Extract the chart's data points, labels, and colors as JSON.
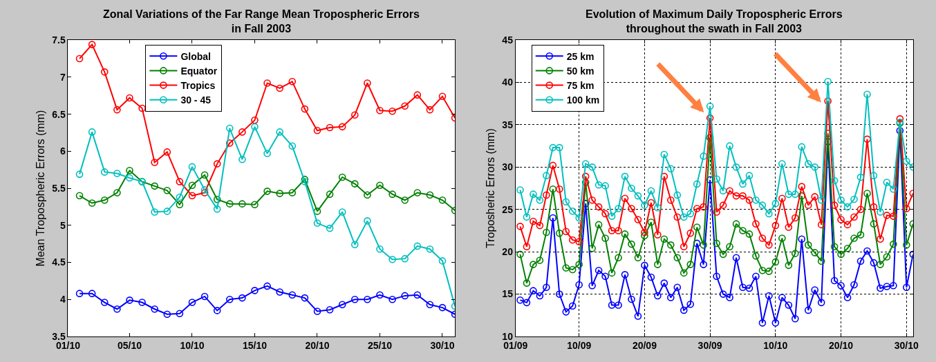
{
  "chart_data": [
    {
      "type": "line",
      "title": "Zonal Variations of the Far Range Mean Tropospheric Errors\nin Fall 2003",
      "ylabel": "Mean Tropospheric Errors (mm)",
      "x": [
        "2003-10-01",
        "2003-10-02",
        "2003-10-03",
        "2003-10-04",
        "2003-10-05",
        "2003-10-06",
        "2003-10-07",
        "2003-10-08",
        "2003-10-09",
        "2003-10-10",
        "2003-10-11",
        "2003-10-12",
        "2003-10-13",
        "2003-10-14",
        "2003-10-15",
        "2003-10-16",
        "2003-10-17",
        "2003-10-18",
        "2003-10-19",
        "2003-10-20",
        "2003-10-21",
        "2003-10-22",
        "2003-10-23",
        "2003-10-24",
        "2003-10-25",
        "2003-10-26",
        "2003-10-27",
        "2003-10-28",
        "2003-10-29",
        "2003-10-30",
        "2003-10-31"
      ],
      "xlim": [
        "2003-09-30T02:00",
        "2003-10-31"
      ],
      "xticks": [
        {
          "value": "2003-09-30T02:00",
          "label": "01/10"
        },
        {
          "value": "2003-10-05",
          "label": "05/10"
        },
        {
          "value": "2003-10-10",
          "label": "10/10"
        },
        {
          "value": "2003-10-15",
          "label": "15/10"
        },
        {
          "value": "2003-10-20",
          "label": "20/10"
        },
        {
          "value": "2003-10-25",
          "label": "25/10"
        },
        {
          "value": "2003-10-30",
          "label": "30/10"
        }
      ],
      "ylim": [
        3.5,
        7.5
      ],
      "yticks": [
        3.5,
        4,
        4.5,
        5,
        5.5,
        6,
        6.5,
        7,
        7.5
      ],
      "marker": "circle",
      "legend": "top",
      "series": [
        {
          "name": "Global",
          "color": "#0000ff",
          "values": [
            4.08,
            4.08,
            3.96,
            3.87,
            3.99,
            3.96,
            3.87,
            3.8,
            3.81,
            3.96,
            4.04,
            3.85,
            4.0,
            4.02,
            4.12,
            4.18,
            4.1,
            4.06,
            4.02,
            3.84,
            3.86,
            3.93,
            4.0,
            4.0,
            4.06,
            4.0,
            4.05,
            4.06,
            3.93,
            3.89,
            3.8
          ]
        },
        {
          "name": "Equator",
          "color": "#008000",
          "values": [
            5.4,
            5.3,
            5.34,
            5.44,
            5.74,
            5.59,
            5.53,
            5.47,
            5.28,
            5.54,
            5.68,
            5.35,
            5.29,
            5.29,
            5.28,
            5.46,
            5.43,
            5.44,
            5.62,
            5.19,
            5.42,
            5.65,
            5.56,
            5.41,
            5.54,
            5.42,
            5.34,
            5.44,
            5.41,
            5.34,
            5.2
          ]
        },
        {
          "name": "Tropics",
          "color": "#ff0000",
          "values": [
            7.25,
            7.44,
            7.07,
            6.56,
            6.72,
            6.58,
            5.85,
            5.99,
            5.59,
            5.4,
            5.44,
            5.83,
            6.11,
            6.26,
            6.42,
            6.92,
            6.85,
            6.94,
            6.57,
            6.28,
            6.32,
            6.33,
            6.49,
            6.92,
            6.55,
            6.54,
            6.61,
            6.76,
            6.56,
            6.74,
            6.45
          ]
        },
        {
          "name": "30 - 45",
          "color": "#00bfbf",
          "values": [
            5.69,
            6.26,
            5.72,
            5.7,
            5.64,
            5.59,
            5.18,
            5.19,
            5.38,
            5.79,
            5.48,
            5.22,
            6.31,
            5.89,
            6.33,
            5.97,
            6.26,
            6.07,
            5.59,
            5.03,
            4.96,
            5.18,
            4.74,
            5.06,
            4.68,
            4.54,
            4.55,
            4.72,
            4.68,
            4.52,
            3.91
          ]
        }
      ]
    },
    {
      "type": "line",
      "title": "Evolution of Maximum Daily Tropospheric Errors\nthroughout the swath in Fall 2003",
      "ylabel": "Troposheric Errors (mm)",
      "x": [
        "2003-09-01",
        "2003-09-02",
        "2003-09-03",
        "2003-09-04",
        "2003-09-05",
        "2003-09-06",
        "2003-09-07",
        "2003-09-08",
        "2003-09-09",
        "2003-09-10",
        "2003-09-11",
        "2003-09-12",
        "2003-09-13",
        "2003-09-14",
        "2003-09-15",
        "2003-09-16",
        "2003-09-17",
        "2003-09-18",
        "2003-09-19",
        "2003-09-20",
        "2003-09-21",
        "2003-09-22",
        "2003-09-23",
        "2003-09-24",
        "2003-09-25",
        "2003-09-26",
        "2003-09-27",
        "2003-09-28",
        "2003-09-29",
        "2003-09-30",
        "2003-10-01",
        "2003-10-02",
        "2003-10-03",
        "2003-10-04",
        "2003-10-05",
        "2003-10-06",
        "2003-10-07",
        "2003-10-08",
        "2003-10-09",
        "2003-10-10",
        "2003-10-11",
        "2003-10-12",
        "2003-10-13",
        "2003-10-14",
        "2003-10-15",
        "2003-10-16",
        "2003-10-17",
        "2003-10-18",
        "2003-10-19",
        "2003-10-20",
        "2003-10-21",
        "2003-10-22",
        "2003-10-23",
        "2003-10-24",
        "2003-10-25",
        "2003-10-26",
        "2003-10-27",
        "2003-10-28",
        "2003-10-29",
        "2003-10-30",
        "2003-10-31"
      ],
      "xlim": [
        "2003-08-31T07:00",
        "2003-10-31"
      ],
      "xticks": [
        {
          "value": "2003-08-31T07:00",
          "label": "01/09"
        },
        {
          "value": "2003-09-10",
          "label": "10/09"
        },
        {
          "value": "2003-09-20",
          "label": "20/09"
        },
        {
          "value": "2003-09-30",
          "label": "30/09"
        },
        {
          "value": "2003-10-10",
          "label": "10/10"
        },
        {
          "value": "2003-10-20",
          "label": "20/10"
        },
        {
          "value": "2003-10-30",
          "label": "30/10"
        }
      ],
      "ylim": [
        10,
        45
      ],
      "yticks": [
        10,
        15,
        20,
        25,
        30,
        35,
        40,
        45
      ],
      "grid": true,
      "marker": "circle",
      "legend": "top left",
      "series": [
        {
          "name": "25 km",
          "color": "#0000ff",
          "values": [
            14.3,
            14.0,
            15.4,
            14.8,
            15.8,
            24.0,
            15.0,
            12.9,
            13.6,
            16.1,
            25.7,
            16.0,
            17.8,
            17.1,
            13.7,
            13.7,
            17.3,
            14.4,
            12.4,
            18.4,
            17.0,
            14.8,
            16.3,
            14.6,
            15.8,
            13.1,
            13.8,
            21.0,
            18.5,
            28.5,
            17.1,
            15.0,
            14.6,
            19.3,
            15.8,
            15.7,
            17.1,
            11.6,
            14.8,
            11.6,
            14.6,
            13.7,
            12.1,
            21.5,
            13.1,
            15.5,
            14.0,
            33.0,
            16.6,
            16.0,
            14.6,
            16.1,
            18.9,
            20.1,
            18.7,
            15.7,
            15.9,
            16.0,
            34.3,
            15.8,
            19.7
          ]
        },
        {
          "name": "50 km",
          "color": "#008000",
          "values": [
            19.7,
            16.3,
            18.5,
            19.0,
            22.3,
            27.4,
            22.2,
            18.1,
            17.9,
            18.5,
            28.2,
            20.4,
            23.2,
            21.6,
            17.5,
            19.3,
            22.1,
            20.9,
            19.3,
            21.9,
            23.5,
            18.5,
            21.5,
            20.8,
            19.3,
            17.5,
            18.5,
            22.9,
            20.8,
            33.5,
            21.0,
            19.7,
            20.6,
            23.3,
            22.5,
            22.1,
            19.5,
            17.8,
            17.7,
            18.8,
            21.6,
            18.4,
            19.8,
            26.6,
            20.8,
            19.9,
            18.9,
            34.0,
            20.6,
            19.7,
            20.4,
            21.6,
            22.0,
            26.9,
            23.3,
            18.5,
            19.4,
            20.9,
            35.2,
            20.8,
            23.3
          ]
        },
        {
          "name": "75 km",
          "color": "#ff0000",
          "values": [
            23.0,
            20.6,
            23.6,
            23.1,
            26.7,
            30.2,
            27.4,
            22.4,
            21.4,
            21.2,
            28.9,
            26.1,
            25.3,
            24.5,
            22.5,
            22.5,
            26.3,
            25.1,
            23.8,
            22.3,
            25.8,
            22.0,
            28.9,
            26.1,
            24.1,
            20.6,
            22.2,
            25.1,
            25.3,
            35.8,
            24.7,
            25.5,
            27.2,
            26.6,
            26.6,
            26.1,
            23.3,
            21.6,
            20.8,
            23.1,
            26.3,
            22.9,
            24.0,
            27.7,
            25.5,
            26.5,
            23.2,
            37.8,
            25.5,
            23.8,
            23.2,
            24.1,
            25.0,
            33.3,
            25.3,
            21.5,
            24.3,
            24.2,
            35.7,
            25.1,
            26.9
          ]
        },
        {
          "name": "100 km",
          "color": "#00bfbf",
          "values": [
            27.3,
            24.1,
            26.8,
            26.1,
            29.0,
            32.3,
            32.3,
            25.9,
            24.8,
            24.0,
            30.4,
            30.0,
            27.9,
            27.8,
            24.2,
            25.1,
            28.9,
            27.5,
            26.6,
            25.5,
            27.2,
            25.2,
            31.5,
            29.8,
            26.7,
            24.1,
            24.5,
            28.0,
            31.3,
            37.2,
            28.6,
            27.2,
            32.5,
            30.0,
            28.0,
            29.0,
            26.1,
            25.5,
            24.5,
            25.7,
            30.4,
            26.8,
            26.8,
            32.4,
            30.4,
            30.0,
            26.1,
            40.1,
            28.4,
            26.1,
            25.3,
            26.2,
            28.8,
            38.6,
            29.0,
            24.7,
            28.2,
            27.4,
            35.3,
            30.7,
            30.0
          ]
        }
      ]
    }
  ]
}
